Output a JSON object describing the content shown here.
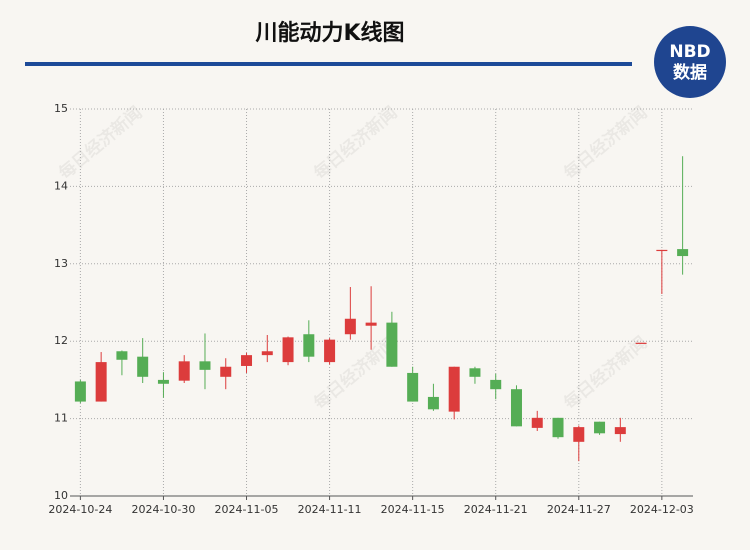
{
  "chart_data": {
    "type": "candlestick",
    "title": "川能动力K线图",
    "logo": {
      "top": "NBD",
      "bottom": "数据"
    },
    "watermark": "每日经济新闻",
    "categories": [
      "2024-10-24",
      null,
      null,
      null,
      "2024-10-30",
      null,
      null,
      null,
      "2024-11-05",
      null,
      null,
      null,
      "2024-11-11",
      null,
      null,
      null,
      "2024-11-15",
      null,
      null,
      null,
      "2024-11-21",
      null,
      null,
      null,
      "2024-11-27",
      null,
      null,
      null,
      "2024-12-03",
      null
    ],
    "open": [
      11.48,
      11.22,
      11.87,
      11.8,
      11.5,
      11.49,
      11.74,
      11.54,
      11.68,
      11.82,
      11.73,
      12.09,
      11.73,
      12.09,
      12.2,
      12.24,
      11.59,
      11.28,
      11.09,
      11.65,
      11.5,
      11.38,
      10.88,
      11.01,
      10.7,
      10.96,
      10.8,
      11.97,
      13.17,
      13.19
    ],
    "high": [
      11.5,
      11.86,
      11.88,
      12.04,
      11.6,
      11.82,
      12.1,
      11.78,
      11.85,
      12.08,
      12.06,
      12.27,
      12.04,
      12.7,
      12.71,
      12.38,
      11.67,
      11.45,
      11.67,
      11.67,
      11.58,
      11.43,
      11.1,
      11.01,
      10.91,
      10.96,
      11.01,
      11.98,
      13.18,
      14.39
    ],
    "low": [
      11.2,
      11.22,
      11.56,
      11.46,
      11.27,
      11.46,
      11.38,
      11.38,
      11.59,
      11.73,
      11.69,
      11.73,
      11.7,
      12.02,
      11.89,
      11.67,
      11.22,
      11.1,
      10.99,
      11.45,
      11.25,
      10.9,
      10.84,
      10.74,
      10.45,
      10.79,
      10.7,
      11.97,
      12.61,
      12.86
    ],
    "close": [
      11.22,
      11.73,
      11.76,
      11.54,
      11.45,
      11.74,
      11.63,
      11.67,
      11.82,
      11.87,
      12.05,
      11.8,
      12.02,
      12.29,
      12.24,
      11.67,
      11.22,
      11.12,
      11.67,
      11.54,
      11.38,
      10.9,
      11.01,
      10.76,
      10.89,
      10.81,
      10.89,
      11.98,
      13.18,
      13.1
    ],
    "up_color": "#dc3c3c",
    "down_color": "#55ad55",
    "ylim": [
      10,
      15
    ],
    "yticks": [
      10,
      11,
      12,
      13,
      14,
      15
    ],
    "grid": true
  }
}
